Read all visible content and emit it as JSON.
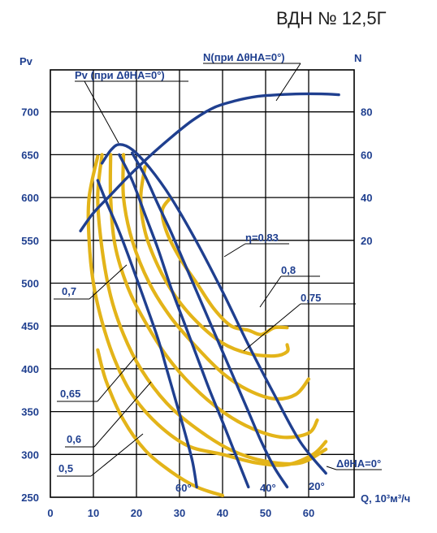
{
  "title": "ВДН № 12,5Г",
  "chart_data": {
    "type": "line",
    "xlabel": "Q, 10³м³/ч",
    "ylabel_left": "Pv",
    "ylabel_right": "N",
    "xlim": [
      0,
      70
    ],
    "ylim": [
      250,
      760
    ],
    "x_ticks": [
      "0",
      "10",
      "20",
      "30",
      "40",
      "50",
      "60"
    ],
    "y_ticks": [
      "250",
      "300",
      "350",
      "400",
      "450",
      "500",
      "550",
      "600",
      "650",
      "700"
    ],
    "right_ticks": [
      {
        "label": "20",
        "value": 20,
        "pv": 550
      },
      {
        "label": "40",
        "value": 40,
        "pv": 600
      },
      {
        "label": "60",
        "value": 60,
        "pv": 650
      },
      {
        "label": "80",
        "value": 80,
        "pv": 700
      }
    ],
    "series": [
      {
        "name": "Pv (при ΔθНА=0°)",
        "color": "#1f3f8f",
        "x": [
          12,
          14,
          16,
          19,
          23,
          28,
          34,
          40,
          46,
          52,
          58,
          64
        ],
        "y": [
          640,
          655,
          662,
          656,
          635,
          600,
          548,
          490,
          428,
          370,
          315,
          278
        ]
      },
      {
        "name": "60°",
        "color": "#1f3f8f",
        "x": [
          11,
          13,
          16,
          19,
          22,
          25,
          27,
          29,
          31,
          33,
          34
        ],
        "y": [
          620,
          595,
          560,
          520,
          478,
          435,
          400,
          365,
          330,
          292,
          262
        ]
      },
      {
        "name": "40°",
        "color": "#1f3f8f",
        "x": [
          16,
          19,
          22,
          25,
          28,
          31,
          34,
          37,
          40,
          43,
          46
        ],
        "y": [
          650,
          620,
          580,
          540,
          495,
          455,
          415,
          375,
          338,
          300,
          262
        ]
      },
      {
        "name": "20°",
        "color": "#1f3f8f",
        "x": [
          19,
          22,
          25,
          28,
          31,
          34,
          37,
          40,
          43,
          46,
          49,
          52,
          55
        ],
        "y": [
          652,
          625,
          592,
          560,
          525,
          490,
          455,
          420,
          385,
          350,
          315,
          285,
          262
        ]
      },
      {
        "name": "N(при ΔθНА=0°)",
        "color": "#1f3f8f",
        "x": [
          7,
          10,
          14,
          18,
          23,
          28,
          33,
          38,
          43,
          48,
          53,
          58,
          63,
          67
        ],
        "y": [
          561,
          582,
          603,
          624,
          648,
          670,
          690,
          705,
          713,
          718,
          720,
          721,
          721,
          720
        ]
      },
      {
        "name": "η=0,83",
        "color": "#e3b419",
        "x": [
          28,
          26,
          27,
          30,
          34,
          38,
          42,
          46,
          49,
          52,
          55
        ],
        "y": [
          600,
          585,
          560,
          530,
          500,
          470,
          450,
          445,
          440,
          448,
          448
        ]
      },
      {
        "name": "0,8",
        "color": "#e3b419",
        "x": [
          22,
          21,
          22,
          25,
          29,
          34,
          40,
          46,
          52,
          55,
          55
        ],
        "y": [
          636,
          600,
          560,
          520,
          485,
          455,
          430,
          418,
          415,
          420,
          428
        ]
      },
      {
        "name": "0,75",
        "color": "#e3b419",
        "x": [
          17,
          17,
          19,
          23,
          28,
          34,
          40,
          46,
          52,
          57,
          60
        ],
        "y": [
          650,
          600,
          550,
          500,
          460,
          425,
          395,
          375,
          365,
          370,
          388
        ]
      },
      {
        "name": "0,7",
        "color": "#e3b419",
        "x": [
          14,
          14,
          15,
          18,
          22,
          27,
          33,
          40,
          47,
          54,
          60,
          62
        ],
        "y": [
          650,
          600,
          545,
          495,
          455,
          415,
          380,
          350,
          330,
          320,
          325,
          340
        ]
      },
      {
        "name": "0,65",
        "color": "#e3b419",
        "x": [
          12,
          11,
          12,
          14,
          17,
          21,
          27,
          34,
          42,
          50,
          58,
          64
        ],
        "y": [
          650,
          600,
          540,
          485,
          440,
          400,
          360,
          330,
          305,
          292,
          290,
          306
        ]
      },
      {
        "name": "0,6",
        "color": "#e3b419",
        "x": [
          11,
          9,
          9,
          10,
          12,
          15,
          19,
          25,
          32,
          40,
          48,
          55,
          61,
          64
        ],
        "y": [
          648,
          600,
          550,
          500,
          455,
          410,
          370,
          335,
          310,
          300,
          290,
          288,
          300,
          315
        ]
      },
      {
        "name": "0,5",
        "color": "#e3b419",
        "x": [
          11,
          13,
          17,
          22,
          28,
          34,
          40
        ],
        "y": [
          422,
          385,
          340,
          305,
          280,
          262,
          252
        ]
      }
    ],
    "annotations": [
      {
        "text": "Pv (при ΔθНА=0°)"
      },
      {
        "text": "N(при ΔθНА=0°)"
      },
      {
        "text": "η=0,83"
      },
      {
        "text": "0,8"
      },
      {
        "text": "0,75"
      },
      {
        "text": "0,7"
      },
      {
        "text": "0,65"
      },
      {
        "text": "0,6"
      },
      {
        "text": "0,5"
      },
      {
        "text": "ΔθНА=0°"
      },
      {
        "text": "60°"
      },
      {
        "text": "40°"
      },
      {
        "text": "20°"
      }
    ],
    "grid": true
  }
}
